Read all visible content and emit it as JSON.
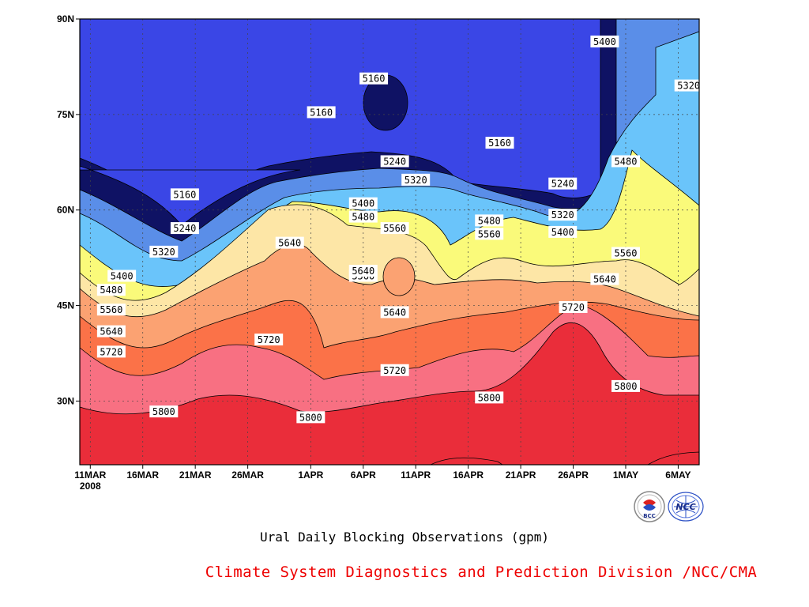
{
  "chart_data": {
    "type": "contour",
    "title": "",
    "caption": "Ural Daily Blocking Observations (gpm)",
    "credit": "Climate System Diagnostics and Prediction Division /NCC/CMA",
    "x_ticks": [
      "11MAR",
      "16MAR",
      "21MAR",
      "26MAR",
      "1APR",
      "6APR",
      "11APR",
      "16APR",
      "21APR",
      "26APR",
      "1MAY",
      "6MAY"
    ],
    "x_year": "2008",
    "x_range": [
      "2008-03-10",
      "2008-05-08"
    ],
    "y_ticks": [
      "30N",
      "45N",
      "60N",
      "75N",
      "90N"
    ],
    "y_range": [
      20,
      90
    ],
    "grid": true,
    "contour_levels": [
      5160,
      5240,
      5320,
      5400,
      5480,
      5560,
      5640,
      5720,
      5800
    ],
    "fill_colors": [
      "#0f1264",
      "#1414dc",
      "#3a46e6",
      "#5a8ee8",
      "#6ac4fa",
      "#fafa7a",
      "#fde6a6",
      "#fba272",
      "#fb7248",
      "#f87082",
      "#ea2d3a"
    ],
    "labels": [
      {
        "date": "2008-03-13",
        "lat": 37.7,
        "value": 5720
      },
      {
        "date": "2008-03-13",
        "lat": 40.9,
        "value": 5640
      },
      {
        "date": "2008-03-13",
        "lat": 44.3,
        "value": 5560
      },
      {
        "date": "2008-03-13",
        "lat": 47.4,
        "value": 5480
      },
      {
        "date": "2008-03-14",
        "lat": 49.6,
        "value": 5400
      },
      {
        "date": "2008-03-18",
        "lat": 28.3,
        "value": 5800
      },
      {
        "date": "2008-03-18",
        "lat": 53.4,
        "value": 5320
      },
      {
        "date": "2008-03-20",
        "lat": 57.1,
        "value": 5240
      },
      {
        "date": "2008-03-20",
        "lat": 62.4,
        "value": 5160
      },
      {
        "date": "2008-03-28",
        "lat": 39.6,
        "value": 5720
      },
      {
        "date": "2008-03-30",
        "lat": 54.8,
        "value": 5640
      },
      {
        "date": "2008-04-01",
        "lat": 27.4,
        "value": 5800
      },
      {
        "date": "2008-04-02",
        "lat": 75.3,
        "value": 5160
      },
      {
        "date": "2008-04-06",
        "lat": 49.6,
        "value": 5560
      },
      {
        "date": "2008-04-06",
        "lat": 50.4,
        "value": 5640
      },
      {
        "date": "2008-04-06",
        "lat": 58.9,
        "value": 5480
      },
      {
        "date": "2008-04-06",
        "lat": 61.0,
        "value": 5400
      },
      {
        "date": "2008-04-07",
        "lat": 80.6,
        "value": 5160
      },
      {
        "date": "2008-04-09",
        "lat": 43.9,
        "value": 5640
      },
      {
        "date": "2008-04-09",
        "lat": 34.8,
        "value": 5720
      },
      {
        "date": "2008-04-09",
        "lat": 67.6,
        "value": 5240
      },
      {
        "date": "2008-04-11",
        "lat": 64.7,
        "value": 5320
      },
      {
        "date": "2008-04-09",
        "lat": 57.1,
        "value": 5560
      },
      {
        "date": "2008-04-18",
        "lat": 56.2,
        "value": 5560
      },
      {
        "date": "2008-04-18",
        "lat": 58.3,
        "value": 5480
      },
      {
        "date": "2008-04-18",
        "lat": 30.5,
        "value": 5800
      },
      {
        "date": "2008-04-19",
        "lat": 70.5,
        "value": 5160
      },
      {
        "date": "2008-04-25",
        "lat": 64.1,
        "value": 5240
      },
      {
        "date": "2008-04-25",
        "lat": 59.2,
        "value": 5320
      },
      {
        "date": "2008-04-25",
        "lat": 56.5,
        "value": 5400
      },
      {
        "date": "2008-04-26",
        "lat": 44.7,
        "value": 5720
      },
      {
        "date": "2008-04-29",
        "lat": 49.1,
        "value": 5640
      },
      {
        "date": "2008-04-29",
        "lat": 86.4,
        "value": 5400
      },
      {
        "date": "2008-05-01",
        "lat": 32.3,
        "value": 5800
      },
      {
        "date": "2008-05-01",
        "lat": 67.6,
        "value": 5480
      },
      {
        "date": "2008-05-01",
        "lat": 53.2,
        "value": 5560
      },
      {
        "date": "2008-05-07",
        "lat": 79.5,
        "value": 5320
      }
    ],
    "logos": [
      "BCC",
      "NCC"
    ]
  }
}
